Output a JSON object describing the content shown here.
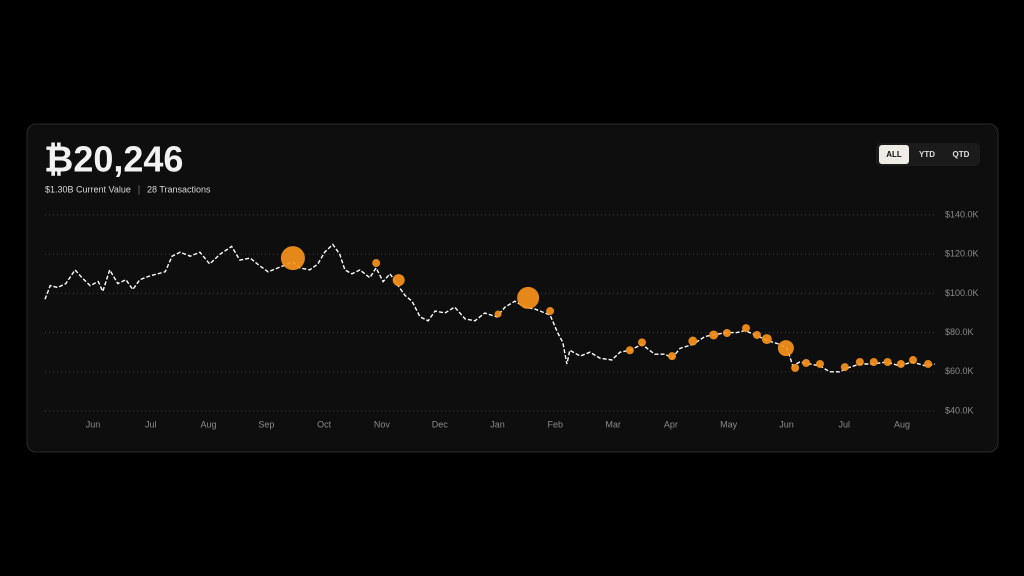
{
  "header": {
    "value": "₿20,246",
    "current_value": "$1.30B Current Value",
    "transactions": "28 Transactions"
  },
  "range_buttons": [
    {
      "label": "ALL",
      "active": true
    },
    {
      "label": "YTD",
      "active": false
    },
    {
      "label": "QTD",
      "active": false
    }
  ],
  "chart_data": {
    "type": "line",
    "color": "#ffffff",
    "line_style": "dashed",
    "x": [
      -0.83,
      -0.74,
      -0.61,
      -0.47,
      -0.31,
      -0.19,
      -0.05,
      0.09,
      0.17,
      0.29,
      0.43,
      0.57,
      0.69,
      0.81,
      0.99,
      1.12,
      1.25,
      1.37,
      1.51,
      1.68,
      1.85,
      2.02,
      2.2,
      2.4,
      2.54,
      2.72,
      2.89,
      3.03,
      3.2,
      3.46,
      3.58,
      3.75,
      3.89,
      4.01,
      4.15,
      4.27,
      4.36,
      4.48,
      4.62,
      4.79,
      4.9,
      5.02,
      5.14,
      5.28,
      5.4,
      5.52,
      5.66,
      5.8,
      5.92,
      6.09,
      6.26,
      6.44,
      6.61,
      6.78,
      6.99,
      7.13,
      7.3,
      7.47,
      7.65,
      7.91,
      8.04,
      8.13,
      8.2,
      8.25,
      8.43,
      8.6,
      8.77,
      8.98,
      9.12,
      9.29,
      9.5,
      9.72,
      9.9,
      10.02,
      10.16,
      10.38,
      10.59,
      10.76,
      10.97,
      11.14,
      11.28,
      11.45,
      11.66,
      11.89,
      12.01,
      12.11,
      12.23,
      12.4,
      12.58,
      12.75,
      12.92,
      13.06,
      13.27,
      13.49,
      13.74,
      13.96,
      14.17,
      14.41,
      14.57
    ],
    "values": [
      97,
      104,
      103,
      105,
      112,
      108,
      104,
      106,
      101,
      112,
      105,
      107,
      102,
      107,
      109,
      110,
      111,
      119,
      121,
      119,
      121,
      115,
      120,
      124,
      117,
      118,
      114,
      111,
      113,
      116,
      113,
      112,
      115,
      121,
      125,
      120,
      112,
      110,
      112,
      108,
      113,
      106,
      110,
      104,
      99,
      96,
      88,
      86,
      91,
      90,
      93,
      87,
      86,
      90,
      88,
      93,
      96,
      93,
      92,
      89,
      80,
      75,
      64,
      71,
      68,
      70,
      67,
      66,
      70,
      71,
      74,
      69,
      69,
      67,
      72,
      74,
      78,
      79,
      80,
      80,
      81,
      79,
      76,
      74,
      72,
      63,
      65,
      64,
      63,
      60,
      60,
      62,
      64,
      64,
      65,
      63,
      65,
      63,
      64
    ],
    "points": {
      "color": "#f7931a",
      "x": [
        3.46,
        4.9,
        5.29,
        7.01,
        7.53,
        7.91,
        9.29,
        9.5,
        10.02,
        10.38,
        10.74,
        10.97,
        11.3,
        11.49,
        11.66,
        11.99,
        12.15,
        12.34,
        12.58,
        13.01,
        13.27,
        13.51,
        13.75,
        13.98,
        14.19,
        14.45
      ],
      "values": [
        118,
        115.5,
        106.8,
        89.5,
        97.7,
        91,
        71,
        75,
        68,
        75.7,
        78.8,
        79.8,
        82.3,
        78.8,
        76.7,
        72.1,
        62,
        64.5,
        64,
        62.4,
        65,
        65,
        65,
        64,
        66,
        64
      ],
      "sizes": [
        12,
        4,
        6,
        3.5,
        11,
        4,
        4,
        4,
        4,
        4.5,
        4.5,
        4,
        4,
        4,
        5,
        8,
        4,
        4,
        4,
        4,
        4,
        4,
        4,
        4,
        4,
        4
      ]
    },
    "xlim": [
      -0.83,
      14.57
    ],
    "xticks": [
      {
        "value": 0,
        "label": "Jun"
      },
      {
        "value": 1,
        "label": "Jul"
      },
      {
        "value": 2,
        "label": "Aug"
      },
      {
        "value": 3,
        "label": "Sep"
      },
      {
        "value": 4,
        "label": "Oct"
      },
      {
        "value": 5,
        "label": "Nov"
      },
      {
        "value": 6,
        "label": "Dec"
      },
      {
        "value": 7,
        "label": "Jan"
      },
      {
        "value": 8,
        "label": "Feb"
      },
      {
        "value": 9,
        "label": "Mar"
      },
      {
        "value": 10,
        "label": "Apr"
      },
      {
        "value": 11,
        "label": "May"
      },
      {
        "value": 12,
        "label": "Jun"
      },
      {
        "value": 13,
        "label": "Jul"
      },
      {
        "value": 14,
        "label": "Aug"
      }
    ],
    "ylim": [
      40,
      140
    ],
    "yticks": [
      {
        "value": 40,
        "label": "$40.0K"
      },
      {
        "value": 60,
        "label": "$60.0K"
      },
      {
        "value": 80,
        "label": "$80.0K"
      },
      {
        "value": 100,
        "label": "$100.0K"
      },
      {
        "value": 120,
        "label": "$120.0K"
      },
      {
        "value": 140,
        "label": "$140.0K"
      }
    ],
    "grid": true
  }
}
